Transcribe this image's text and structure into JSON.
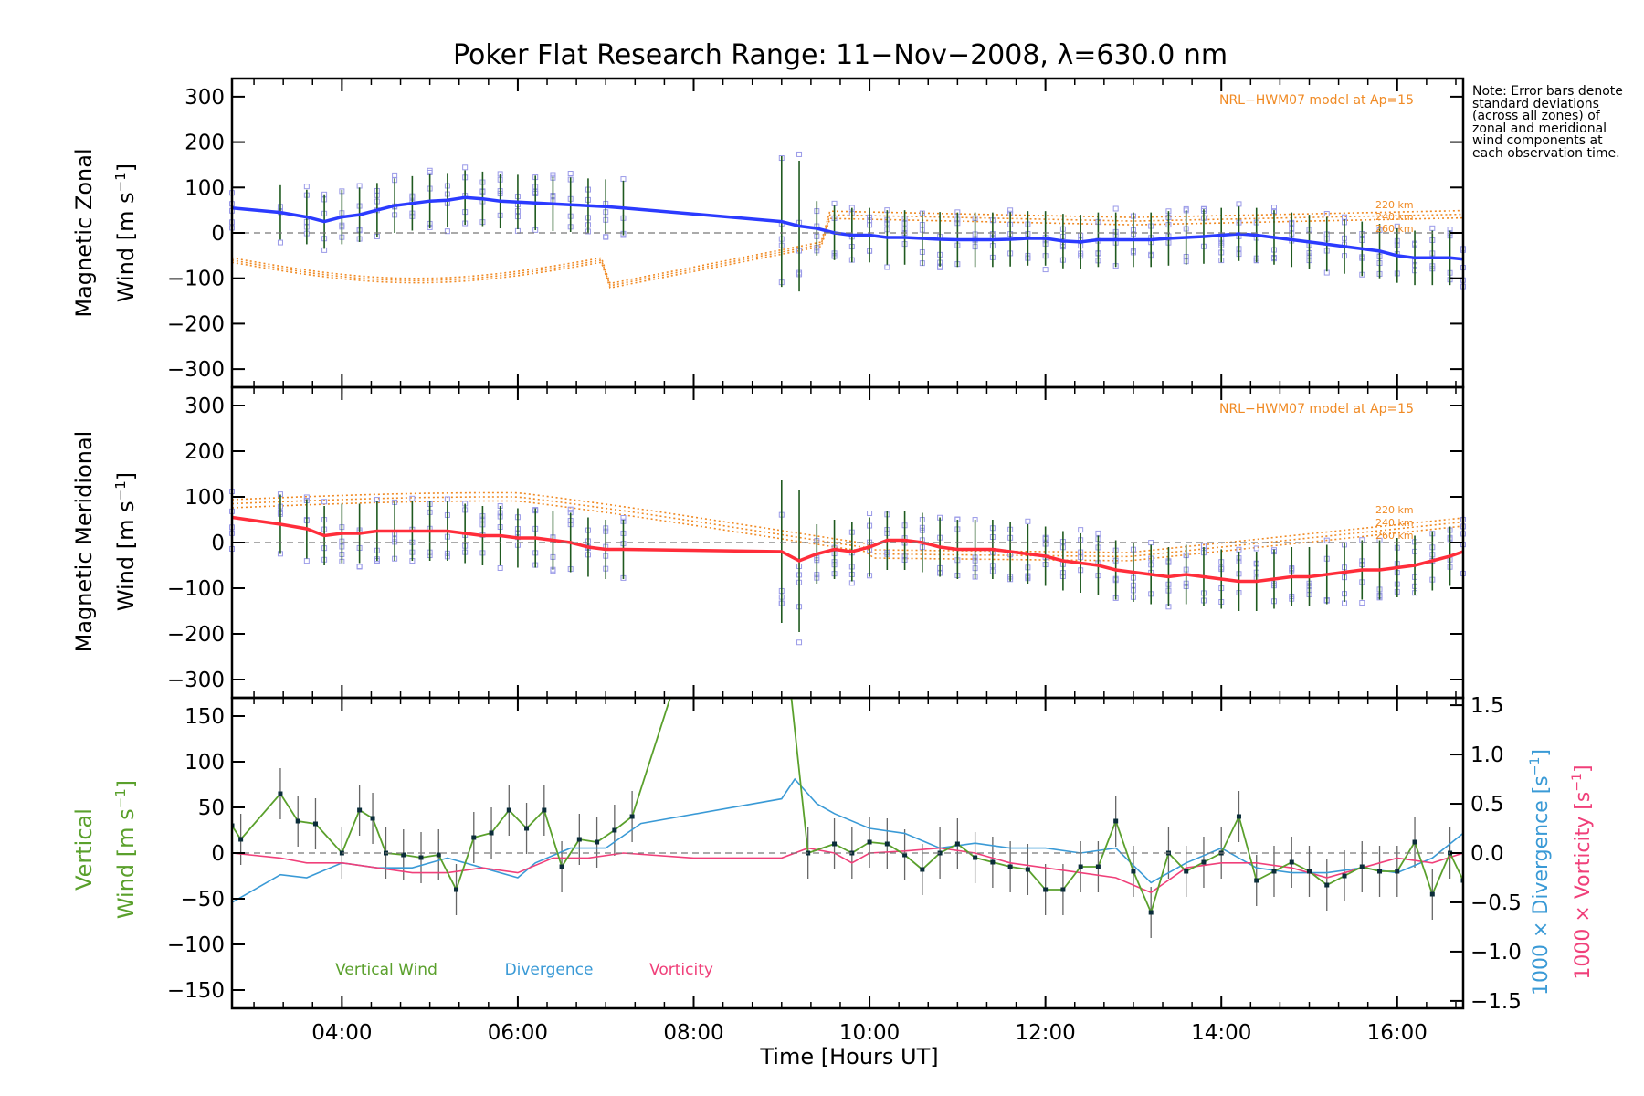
{
  "title": "Poker Flat Research Range: 11−Nov−2008, λ=630.0 nm",
  "note": "Note: Error bars denote standard deviations (across all zones) of zonal and meridional wind components at each observation time.",
  "xlabel": "Time [Hours UT]",
  "colors": {
    "zonal": "#2b3bff",
    "meridional": "#ff2d3a",
    "model": "#f08a24",
    "vertical": "#5aa02c",
    "divergence": "#3a9ad6",
    "vorticity": "#f0407a",
    "samples": "#9a9ae8"
  },
  "chart_data": [
    {
      "type": "line",
      "panel": "zonal",
      "ylabel_line1": "Magnetic Zonal",
      "ylabel_line2": "Wind [m s",
      "ylabel_sup": "−1",
      "ylabel_close": "]",
      "xlim": [
        2.75,
        16.75
      ],
      "ylim": [
        -340,
        340
      ],
      "x_ticks": [
        "04:00",
        "06:00",
        "08:00",
        "10:00",
        "12:00",
        "14:00",
        "16:00"
      ],
      "y_ticks": [
        "300",
        "200",
        "100",
        "0",
        "−100",
        "−200",
        "−300"
      ],
      "model_label": "NRL−HWM07 model at Ap=15",
      "model_heights": [
        "220 km",
        "240 km",
        "260 km"
      ],
      "series": [
        {
          "x": [
            2.75,
            3.3,
            3.6,
            3.8,
            4.0,
            4.2,
            4.4,
            4.6,
            4.8,
            5.0,
            5.2,
            5.4,
            5.6,
            5.8,
            6.0,
            6.2,
            6.4,
            6.6,
            6.8,
            7.0,
            7.2,
            9.0,
            9.2,
            9.4,
            9.6,
            9.8,
            10.0,
            10.2,
            10.4,
            10.6,
            10.8,
            11.0,
            11.2,
            11.4,
            11.6,
            11.8,
            12.0,
            12.2,
            12.4,
            12.6,
            12.8,
            13.0,
            13.2,
            13.4,
            13.6,
            13.8,
            14.0,
            14.2,
            14.4,
            14.6,
            14.8,
            15.0,
            15.2,
            15.4,
            15.6,
            15.8,
            16.0,
            16.2,
            16.4,
            16.6,
            16.75
          ],
          "y": [
            55,
            45,
            35,
            25,
            35,
            40,
            50,
            60,
            65,
            70,
            72,
            78,
            75,
            70,
            68,
            66,
            64,
            62,
            60,
            58,
            55,
            25,
            15,
            10,
            0,
            -5,
            -5,
            -10,
            -10,
            -12,
            -14,
            -15,
            -15,
            -15,
            -14,
            -12,
            -12,
            -18,
            -20,
            -15,
            -15,
            -15,
            -15,
            -12,
            -10,
            -8,
            -5,
            -2,
            -5,
            -10,
            -15,
            -20,
            -25,
            -30,
            -35,
            -40,
            -50,
            -55,
            -55,
            -55,
            -58
          ],
          "sd": 60
        }
      ]
    },
    {
      "type": "line",
      "panel": "meridional",
      "ylabel_line1": "Magnetic Meridional",
      "ylabel_line2": "Wind [m s",
      "ylabel_sup": "−1",
      "ylabel_close": "]",
      "xlim": [
        2.75,
        16.75
      ],
      "ylim": [
        -340,
        340
      ],
      "y_ticks": [
        "300",
        "200",
        "100",
        "0",
        "−100",
        "−200",
        "−300"
      ],
      "model_label": "NRL−HWM07 model at Ap=15",
      "model_heights": [
        "220 km",
        "240 km",
        "260 km"
      ],
      "series": [
        {
          "x": [
            2.75,
            3.3,
            3.6,
            3.8,
            4.0,
            4.2,
            4.4,
            4.6,
            4.8,
            5.0,
            5.2,
            5.4,
            5.6,
            5.8,
            6.0,
            6.2,
            6.4,
            6.6,
            6.8,
            7.0,
            7.2,
            9.0,
            9.2,
            9.4,
            9.6,
            9.8,
            10.0,
            10.2,
            10.4,
            10.6,
            10.8,
            11.0,
            11.2,
            11.4,
            11.6,
            11.8,
            12.0,
            12.2,
            12.4,
            12.6,
            12.8,
            13.0,
            13.2,
            13.4,
            13.6,
            13.8,
            14.0,
            14.2,
            14.4,
            14.6,
            14.8,
            15.0,
            15.2,
            15.4,
            15.6,
            15.8,
            16.0,
            16.2,
            16.4,
            16.6,
            16.75
          ],
          "y": [
            55,
            40,
            30,
            15,
            20,
            20,
            25,
            25,
            25,
            25,
            25,
            20,
            15,
            15,
            10,
            10,
            5,
            0,
            -10,
            -15,
            -15,
            -20,
            -40,
            -25,
            -15,
            -20,
            -10,
            5,
            5,
            0,
            -10,
            -15,
            -15,
            -15,
            -20,
            -25,
            -30,
            -40,
            -45,
            -50,
            -60,
            -65,
            -70,
            -75,
            -70,
            -75,
            -80,
            -85,
            -85,
            -80,
            -75,
            -75,
            -70,
            -65,
            -60,
            -60,
            -55,
            -50,
            -40,
            -30,
            -20
          ],
          "sd": 65
        }
      ]
    },
    {
      "type": "line",
      "panel": "vertical",
      "ylabel_line1": "Vertical",
      "ylabel_line2": "Wind [m s",
      "ylabel_sup": "−1",
      "ylabel_close": "]",
      "right_label_div": "1000 × Divergence [s",
      "right_label_vor": "1000 × Vorticity [s",
      "right_sup": "−1",
      "right_close": "]",
      "xlim": [
        2.75,
        16.75
      ],
      "ylim": [
        -170,
        170
      ],
      "y2lim": [
        -1.575,
        1.575
      ],
      "y_ticks": [
        "150",
        "100",
        "50",
        "0",
        "−50",
        "−100",
        "−150"
      ],
      "y2_ticks": [
        "1.5",
        "1.0",
        "0.5",
        "0.0",
        "−0.5",
        "−1.0",
        "−1.5"
      ],
      "legend": [
        "Vertical Wind",
        "Divergence",
        "Vorticity"
      ],
      "series": [
        {
          "name": "Vertical Wind",
          "x": [
            2.75,
            2.85,
            3.3,
            3.5,
            3.7,
            4.0,
            4.2,
            4.35,
            4.5,
            4.7,
            4.9,
            5.1,
            5.3,
            5.5,
            5.7,
            5.9,
            6.1,
            6.3,
            6.5,
            6.7,
            6.9,
            7.1,
            7.3,
            8.0,
            9.1,
            9.3,
            9.6,
            9.8,
            10.0,
            10.2,
            10.4,
            10.6,
            10.8,
            11.0,
            11.2,
            11.4,
            11.6,
            11.8,
            12.0,
            12.2,
            12.4,
            12.6,
            12.8,
            13.0,
            13.2,
            13.4,
            13.6,
            13.8,
            14.0,
            14.2,
            14.4,
            14.6,
            14.8,
            15.0,
            15.2,
            15.4,
            15.6,
            15.8,
            16.0,
            16.2,
            16.4,
            16.6,
            16.75
          ],
          "y": [
            30,
            15,
            65,
            35,
            32,
            0,
            47,
            38,
            0,
            -2,
            -5,
            -2,
            -40,
            17,
            22,
            47,
            27,
            47,
            -15,
            15,
            12,
            25,
            40,
            250,
            180,
            0,
            10,
            0,
            12,
            10,
            -2,
            -18,
            0,
            10,
            -5,
            -10,
            -15,
            -18,
            -40,
            -40,
            -15,
            -15,
            35,
            -20,
            -65,
            0,
            -20,
            -10,
            0,
            40,
            -30,
            -20,
            -10,
            -20,
            -35,
            -25,
            -15,
            -20,
            -20,
            12,
            -45,
            0,
            -30
          ],
          "sd": 28
        },
        {
          "name": "Divergence",
          "x": [
            2.75,
            3.3,
            3.6,
            4.0,
            4.4,
            4.8,
            5.2,
            5.6,
            6.0,
            6.2,
            6.6,
            7.0,
            7.4,
            9.0,
            9.15,
            9.4,
            9.6,
            10.0,
            10.4,
            10.8,
            11.2,
            11.6,
            12.0,
            12.4,
            12.8,
            13.2,
            13.6,
            14.0,
            14.4,
            14.8,
            15.2,
            15.6,
            16.0,
            16.4,
            16.75
          ],
          "y": [
            -0.5,
            -0.22,
            -0.25,
            -0.1,
            -0.15,
            -0.15,
            -0.05,
            -0.15,
            -0.25,
            -0.1,
            0.05,
            0.05,
            0.3,
            0.55,
            0.75,
            0.5,
            0.4,
            0.25,
            0.2,
            0.05,
            0.1,
            0.05,
            0.05,
            0.0,
            0.05,
            -0.3,
            -0.1,
            0.05,
            -0.15,
            -0.2,
            -0.2,
            -0.15,
            -0.2,
            -0.05,
            0.2
          ],
          "sd": 0
        },
        {
          "name": "Vorticity",
          "x": [
            2.75,
            3.3,
            3.6,
            4.0,
            4.4,
            4.8,
            5.2,
            5.6,
            6.0,
            6.4,
            6.8,
            7.2,
            8.0,
            9.0,
            9.3,
            9.6,
            9.8,
            10.0,
            10.4,
            10.8,
            11.2,
            11.6,
            12.0,
            12.4,
            12.8,
            13.2,
            13.6,
            14.0,
            14.4,
            14.8,
            15.2,
            15.6,
            16.0,
            16.4,
            16.75
          ],
          "y": [
            0.0,
            -0.05,
            -0.1,
            -0.1,
            -0.15,
            -0.2,
            -0.2,
            -0.15,
            -0.2,
            -0.05,
            -0.05,
            0.0,
            -0.05,
            -0.05,
            0.05,
            0.0,
            -0.1,
            0.0,
            0.02,
            0.05,
            0.0,
            -0.1,
            -0.15,
            -0.2,
            -0.25,
            -0.4,
            -0.15,
            -0.1,
            -0.1,
            -0.15,
            -0.25,
            -0.15,
            -0.05,
            -0.1,
            0.0
          ],
          "sd": 0
        }
      ]
    }
  ]
}
